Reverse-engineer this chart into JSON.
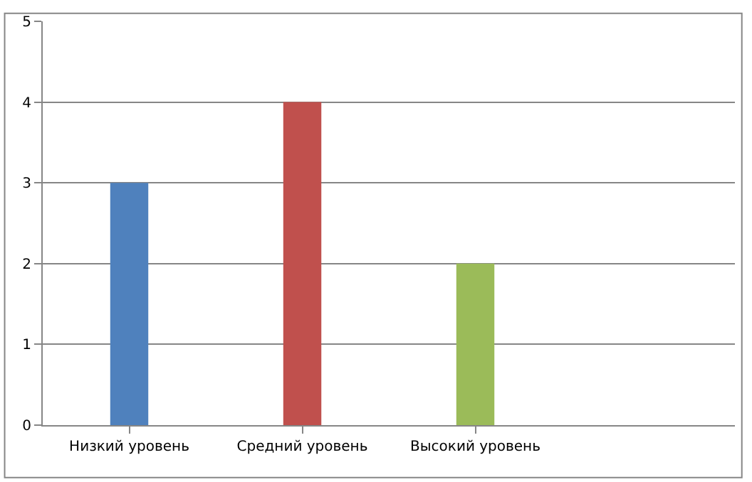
{
  "chart_data": {
    "type": "bar",
    "categories": [
      "Низкий уровень",
      "Средний уровень",
      "Высокий уровень",
      null
    ],
    "values": [
      3,
      4,
      2,
      null
    ],
    "colors": [
      "#4f81bd",
      "#c0504d",
      "#9bbb59",
      "#4f81bd"
    ],
    "ylim": [
      0,
      5
    ],
    "yticks": [
      0,
      1,
      2,
      3,
      4,
      5
    ],
    "grid": "y",
    "legend": false
  }
}
